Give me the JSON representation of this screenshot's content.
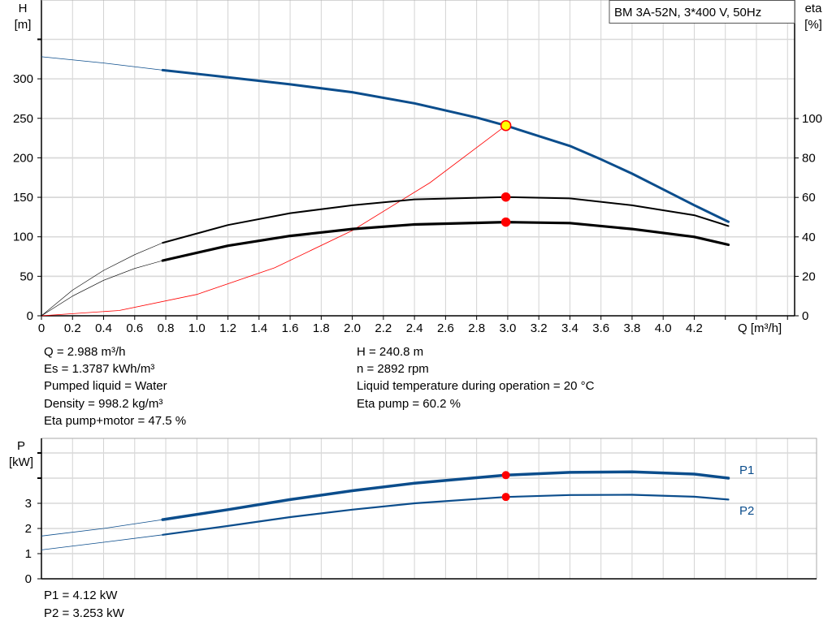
{
  "chart_data": [
    {
      "type": "line",
      "title": "BM 3A-52N, 3*400 V, 50Hz",
      "xlabel": "Q [m³/h]",
      "ylabel": "H\n[m]",
      "ylabel_lines": [
        "H",
        "[m]"
      ],
      "y2label_lines": [
        "eta",
        "[%]"
      ],
      "xlim": [
        0,
        4.85
      ],
      "ylim": [
        0,
        400
      ],
      "y2lim": [
        0,
        164
      ],
      "xticks": [
        "0",
        "0.2",
        "0.4",
        "0.6",
        "0.8",
        "1.0",
        "1.2",
        "1.4",
        "1.6",
        "1.8",
        "2.0",
        "2.2",
        "2.4",
        "2.6",
        "2.8",
        "3.0",
        "3.2",
        "3.4",
        "3.6",
        "3.8",
        "4.0",
        "4.2"
      ],
      "yticks": [
        "0",
        "50",
        "100",
        "150",
        "200",
        "250",
        "300"
      ],
      "y2ticks": [
        "0",
        "20",
        "40",
        "60",
        "80",
        "100"
      ],
      "grid": true,
      "series": [
        {
          "key": "H",
          "axis": "left",
          "color": "#0b4d8c",
          "points": [
            [
              0,
              328
            ],
            [
              0.4,
              320
            ],
            [
              0.78,
              311
            ],
            [
              1.2,
              302
            ],
            [
              1.6,
              293
            ],
            [
              2.0,
              283
            ],
            [
              2.4,
              269
            ],
            [
              2.8,
              251
            ],
            [
              2.988,
              240.8
            ],
            [
              3.4,
              215
            ],
            [
              3.6,
              198
            ],
            [
              3.8,
              180
            ],
            [
              4.0,
              160
            ],
            [
              4.2,
              140
            ],
            [
              4.42,
              119
            ]
          ]
        },
        {
          "key": "eta_pump",
          "axis": "right",
          "color": "#000000",
          "points": [
            [
              0,
              0
            ],
            [
              0.2,
              13
            ],
            [
              0.4,
              23
            ],
            [
              0.6,
              31
            ],
            [
              0.78,
              37
            ],
            [
              1.2,
              46
            ],
            [
              1.6,
              52
            ],
            [
              2.0,
              56
            ],
            [
              2.4,
              59
            ],
            [
              2.988,
              60.2
            ],
            [
              3.4,
              59.5
            ],
            [
              3.8,
              56
            ],
            [
              4.2,
              51
            ],
            [
              4.42,
              45.5
            ]
          ]
        },
        {
          "key": "eta_pump_motor",
          "axis": "right",
          "color": "#000000",
          "points": [
            [
              0,
              0
            ],
            [
              0.2,
              10
            ],
            [
              0.4,
              18
            ],
            [
              0.6,
              24
            ],
            [
              0.78,
              28
            ],
            [
              1.2,
              35.5
            ],
            [
              1.6,
              40.5
            ],
            [
              2.0,
              44
            ],
            [
              2.4,
              46.3
            ],
            [
              2.988,
              47.5
            ],
            [
              3.4,
              47
            ],
            [
              3.8,
              44
            ],
            [
              4.2,
              40
            ],
            [
              4.42,
              36
            ]
          ]
        },
        {
          "key": "system_curve",
          "axis": "left",
          "color": "#ff0000",
          "points": [
            [
              0,
              0
            ],
            [
              0.5,
              6.7
            ],
            [
              1.0,
              27
            ],
            [
              1.5,
              60.7
            ],
            [
              2.0,
              107.9
            ],
            [
              2.5,
              168.6
            ],
            [
              2.988,
              240.8
            ]
          ]
        }
      ],
      "operating_points": [
        {
          "axis": "left",
          "x": 2.988,
          "y": 240.8,
          "fill": "#ffff00",
          "stroke": "#ff0000"
        },
        {
          "axis": "right",
          "x": 2.988,
          "y": 60.2,
          "fill": "#ff0000",
          "stroke": "#ff0000"
        },
        {
          "axis": "right",
          "x": 2.988,
          "y": 47.5,
          "fill": "#ff0000",
          "stroke": "#ff0000"
        }
      ],
      "operating_range_start": 0.78
    },
    {
      "type": "line",
      "ylabel_lines": [
        "P",
        "[kW]"
      ],
      "xlim": [
        0,
        5.0
      ],
      "ylim": [
        0,
        5.6
      ],
      "yticks": [
        "0",
        "1",
        "2",
        "3"
      ],
      "grid": true,
      "series": [
        {
          "name": "P1",
          "color": "#0b4d8c",
          "points": [
            [
              0,
              1.7
            ],
            [
              0.4,
              2.0
            ],
            [
              0.78,
              2.35
            ],
            [
              1.2,
              2.75
            ],
            [
              1.6,
              3.15
            ],
            [
              2.0,
              3.5
            ],
            [
              2.4,
              3.8
            ],
            [
              2.988,
              4.12
            ],
            [
              3.4,
              4.23
            ],
            [
              3.8,
              4.25
            ],
            [
              4.2,
              4.16
            ],
            [
              4.42,
              4.0
            ]
          ]
        },
        {
          "name": "P2",
          "color": "#0b4d8c",
          "points": [
            [
              0,
              1.15
            ],
            [
              0.4,
              1.45
            ],
            [
              0.78,
              1.75
            ],
            [
              1.2,
              2.1
            ],
            [
              1.6,
              2.45
            ],
            [
              2.0,
              2.75
            ],
            [
              2.4,
              3.0
            ],
            [
              2.988,
              3.253
            ],
            [
              3.4,
              3.33
            ],
            [
              3.8,
              3.34
            ],
            [
              4.2,
              3.26
            ],
            [
              4.42,
              3.15
            ]
          ]
        }
      ],
      "operating_points": [
        {
          "x": 2.988,
          "y": 4.12,
          "fill": "#ff0000"
        },
        {
          "x": 2.988,
          "y": 3.253,
          "fill": "#ff0000"
        }
      ],
      "operating_range_start": 0.78
    }
  ],
  "info_left": [
    "Q = 2.988 m³/h",
    "Es = 1.3787 kWh/m³",
    "Pumped liquid = Water",
    "Density = 998.2 kg/m³",
    "Eta pump+motor = 47.5 %"
  ],
  "info_right": [
    "H = 240.8 m",
    "n = 2892 rpm",
    "Liquid temperature during operation = 20 °C",
    "Eta pump = 60.2 %"
  ],
  "power_info": [
    "P1 = 4.12 kW",
    "P2 = 3.253 kW"
  ]
}
